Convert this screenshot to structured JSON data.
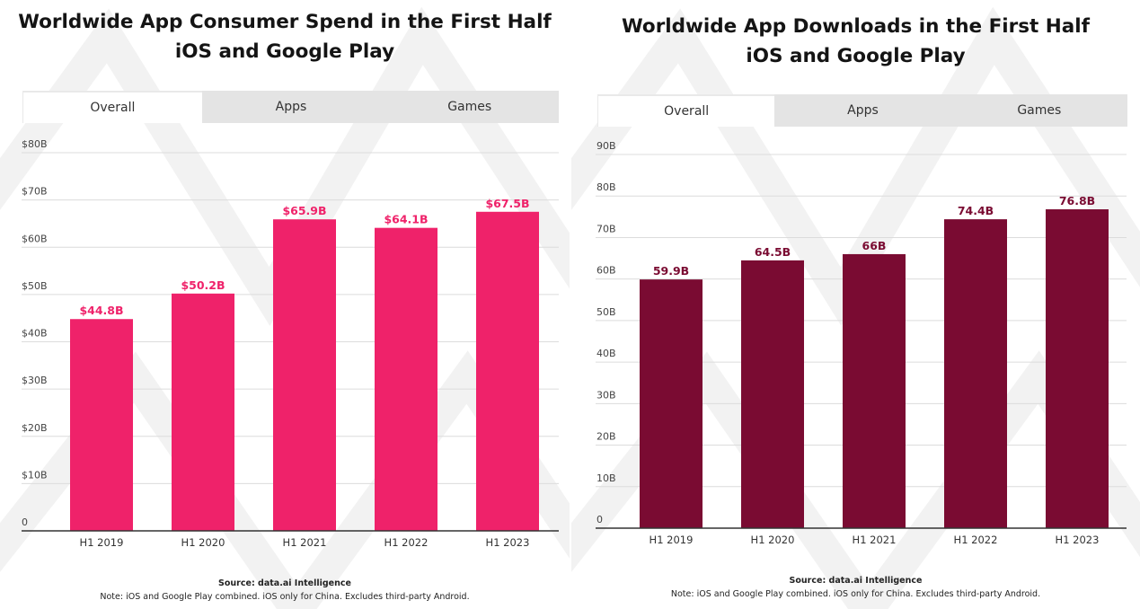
{
  "colors": {
    "spend": "#ef226a",
    "downloads": "#7a0b32",
    "grid": "#dcdcdc",
    "axis": "#333333"
  },
  "left": {
    "title_line1": "Worldwide App Consumer Spend in the First Half",
    "title_line2": "iOS and Google Play",
    "tabs": [
      {
        "label": "Overall",
        "active": true
      },
      {
        "label": "Apps",
        "active": false
      },
      {
        "label": "Games",
        "active": false
      }
    ],
    "source": "Source: data.ai Intelligence",
    "note": "Note: iOS and Google Play combined. iOS only for China. Excludes third-party Android."
  },
  "right": {
    "title_line1": "Worldwide App Downloads in the First Half",
    "title_line2": "iOS and Google Play",
    "tabs": [
      {
        "label": "Overall",
        "active": true
      },
      {
        "label": "Apps",
        "active": false
      },
      {
        "label": "Games",
        "active": false
      }
    ],
    "source": "Source: data.ai Intelligence",
    "note": "Note: iOS and Google Play combined. iOS only for China. Excludes third-party Android."
  },
  "chart_data": [
    {
      "type": "bar",
      "title": "Worldwide App Consumer Spend in the First Half",
      "subtitle": "iOS and Google Play",
      "categories": [
        "H1 2019",
        "H1 2020",
        "H1 2021",
        "H1 2022",
        "H1 2023"
      ],
      "values": [
        44.8,
        50.2,
        65.9,
        64.1,
        67.5
      ],
      "data_labels": [
        "$44.8B",
        "$50.2B",
        "$65.9B",
        "$64.1B",
        "$67.5B"
      ],
      "yticks": [
        0,
        10,
        20,
        30,
        40,
        50,
        60,
        70,
        80
      ],
      "ytick_labels": [
        "0",
        "$10B",
        "$20B",
        "$30B",
        "$40B",
        "$50B",
        "$60B",
        "$70B",
        "$80B"
      ],
      "ylim": [
        0,
        80
      ],
      "grid": true,
      "xlabel": "",
      "ylabel": ""
    },
    {
      "type": "bar",
      "title": "Worldwide App Downloads in the First Half",
      "subtitle": "iOS and Google Play",
      "categories": [
        "H1 2019",
        "H1 2020",
        "H1 2021",
        "H1 2022",
        "H1 2023"
      ],
      "values": [
        59.9,
        64.5,
        66,
        74.4,
        76.8
      ],
      "data_labels": [
        "59.9B",
        "64.5B",
        "66B",
        "74.4B",
        "76.8B"
      ],
      "yticks": [
        0,
        10,
        20,
        30,
        40,
        50,
        60,
        70,
        80,
        90
      ],
      "ytick_labels": [
        "0",
        "10B",
        "20B",
        "30B",
        "40B",
        "50B",
        "60B",
        "70B",
        "80B",
        "90B"
      ],
      "ylim": [
        0,
        90
      ],
      "grid": true,
      "xlabel": "",
      "ylabel": ""
    }
  ]
}
